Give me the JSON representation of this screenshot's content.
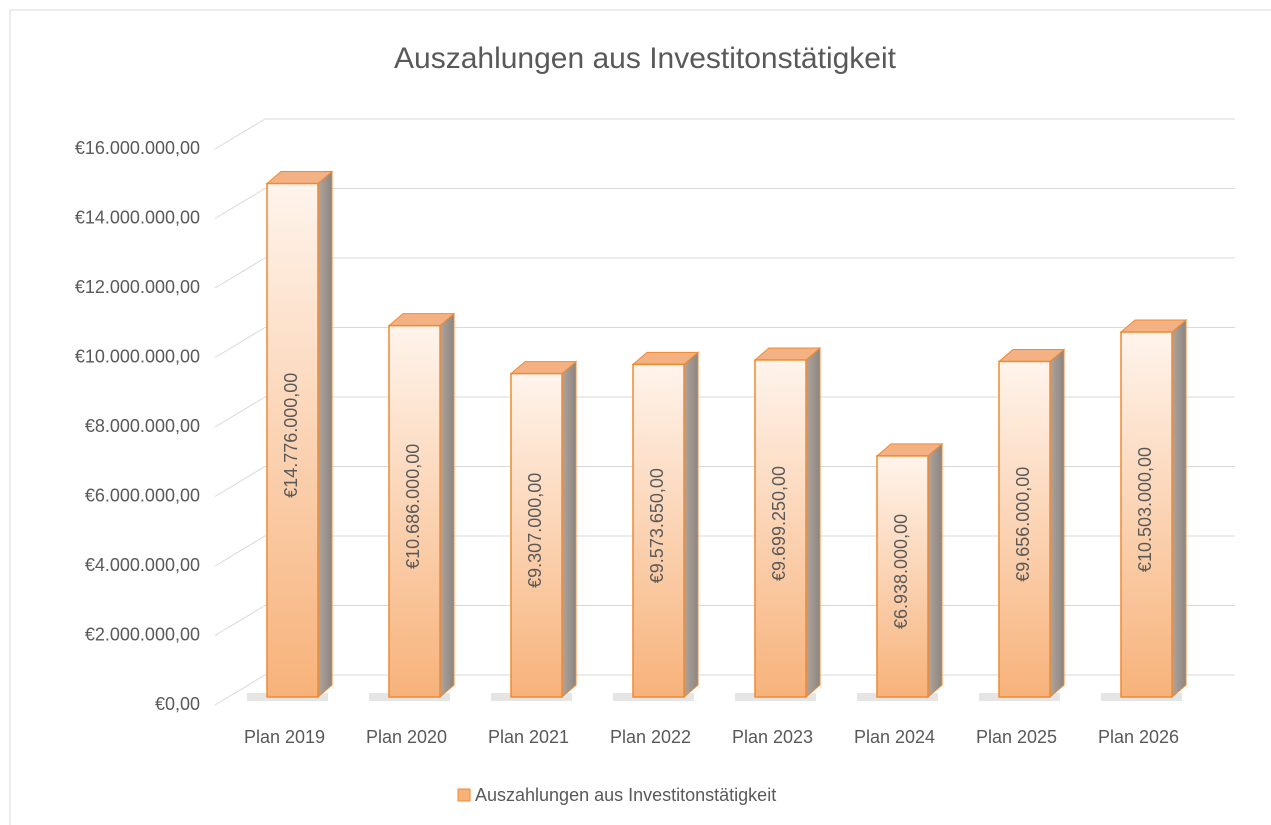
{
  "chart_data": {
    "type": "bar3d",
    "title": "Auszahlungen aus Investitonstätigkeit",
    "categories": [
      "Plan 2019",
      "Plan 2020",
      "Plan 2021",
      "Plan 2022",
      "Plan 2023",
      "Plan 2024",
      "Plan 2025",
      "Plan 2026"
    ],
    "series": [
      {
        "name": "Auszahlungen aus Investitonstätigkeit",
        "color": "#f7b27a",
        "values": [
          14776000,
          10686000,
          9307000,
          9573650,
          9699250,
          6938000,
          9656000,
          10503000
        ],
        "value_labels": [
          "€14.776.000,00",
          "€10.686.000,00",
          "€9.307.000,00",
          "€9.573.650,00",
          "€9.699.250,00",
          "€6.938.000,00",
          "€9.656.000,00",
          "€10.503.000,00"
        ]
      }
    ],
    "ylim": [
      0,
      16000000
    ],
    "yticks": [
      {
        "value": 0,
        "label": "€0,00"
      },
      {
        "value": 2000000,
        "label": "€2.000.000,00"
      },
      {
        "value": 4000000,
        "label": "€4.000.000,00"
      },
      {
        "value": 6000000,
        "label": "€6.000.000,00"
      },
      {
        "value": 8000000,
        "label": "€8.000.000,00"
      },
      {
        "value": 10000000,
        "label": "€10.000.000,00"
      },
      {
        "value": 12000000,
        "label": "€12.000.000,00"
      },
      {
        "value": 14000000,
        "label": "€14.000.000,00"
      },
      {
        "value": 16000000,
        "label": "€16.000.000,00"
      }
    ],
    "grid": true,
    "legend": "bottom"
  }
}
